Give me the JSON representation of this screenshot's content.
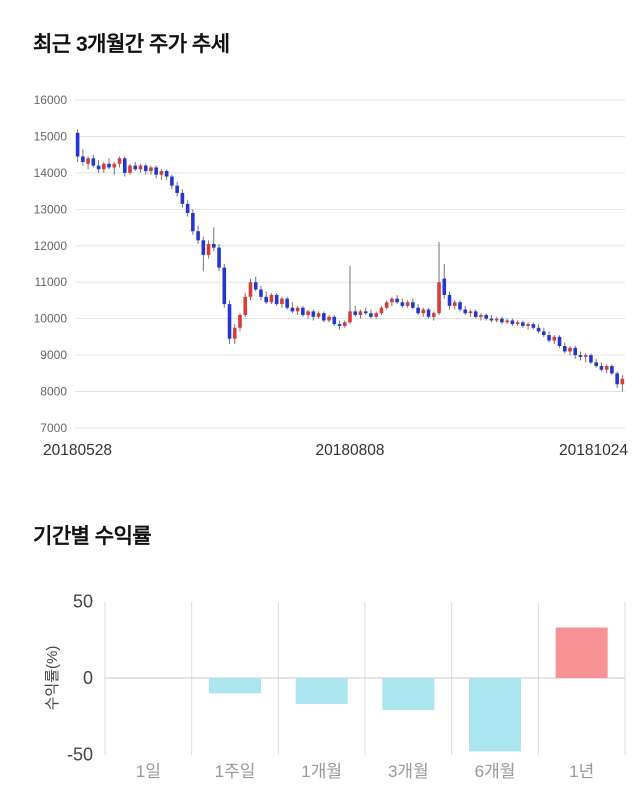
{
  "chart_data": [
    {
      "type": "candlestick",
      "title": "최근 3개월간 주가 추세",
      "ylim": [
        7000,
        16000
      ],
      "y_ticks": [
        16000,
        15000,
        14000,
        13000,
        12000,
        11000,
        10000,
        9000,
        8000,
        7000
      ],
      "x_tick_labels": [
        "20180528",
        "20180808",
        "20181024"
      ],
      "up_color": "#d93a3a",
      "down_color": "#2336d2",
      "wick_color": "#757575",
      "grid_color": "#e3e3e3",
      "tick_color": "#666666",
      "axis_label_color": "#333333",
      "candles_ohlc": [
        [
          15100,
          15200,
          14300,
          14450
        ],
        [
          14450,
          14650,
          14200,
          14300
        ],
        [
          14250,
          14450,
          14100,
          14400
        ],
        [
          14400,
          14500,
          14150,
          14200
        ],
        [
          14200,
          14350,
          14000,
          14100
        ],
        [
          14100,
          14300,
          14000,
          14250
        ],
        [
          14250,
          14400,
          14100,
          14150
        ],
        [
          14150,
          14300,
          13950,
          14250
        ],
        [
          14250,
          14450,
          14150,
          14400
        ],
        [
          14400,
          14450,
          13900,
          14000
        ],
        [
          14000,
          14250,
          13950,
          14200
        ],
        [
          14200,
          14300,
          14050,
          14100
        ],
        [
          14100,
          14250,
          14000,
          14200
        ],
        [
          14200,
          14250,
          13950,
          14050
        ],
        [
          14050,
          14200,
          13950,
          14150
        ],
        [
          14150,
          14200,
          13850,
          13950
        ],
        [
          13950,
          14100,
          13800,
          14050
        ],
        [
          14050,
          14100,
          13800,
          13900
        ],
        [
          13900,
          13950,
          13550,
          13650
        ],
        [
          13650,
          13750,
          13350,
          13450
        ],
        [
          13450,
          13550,
          13050,
          13150
        ],
        [
          13150,
          13250,
          12800,
          12900
        ],
        [
          12900,
          13000,
          12300,
          12400
        ],
        [
          12400,
          12550,
          12050,
          12150
        ],
        [
          12150,
          12250,
          11300,
          11750
        ],
        [
          11750,
          12150,
          11650,
          12050
        ],
        [
          12050,
          12500,
          11850,
          11950
        ],
        [
          11950,
          12050,
          11300,
          11400
        ],
        [
          11400,
          11500,
          10300,
          10400
        ],
        [
          10400,
          10500,
          9300,
          9450
        ],
        [
          9450,
          9850,
          9300,
          9750
        ],
        [
          9750,
          10150,
          9650,
          10100
        ],
        [
          10100,
          10700,
          10050,
          10600
        ],
        [
          10600,
          11100,
          10500,
          11000
        ],
        [
          11000,
          11150,
          10750,
          10800
        ],
        [
          10800,
          10900,
          10500,
          10600
        ],
        [
          10600,
          10750,
          10400,
          10450
        ],
        [
          10450,
          10700,
          10400,
          10650
        ],
        [
          10650,
          10700,
          10350,
          10400
        ],
        [
          10400,
          10600,
          10300,
          10550
        ],
        [
          10550,
          10600,
          10250,
          10300
        ],
        [
          10300,
          10450,
          10150,
          10200
        ],
        [
          10200,
          10350,
          10100,
          10300
        ],
        [
          10300,
          10350,
          10050,
          10100
        ],
        [
          10100,
          10250,
          10000,
          10200
        ],
        [
          10200,
          10250,
          9950,
          10050
        ],
        [
          10050,
          10200,
          10000,
          10150
        ],
        [
          10150,
          10200,
          9900,
          9950
        ],
        [
          9950,
          10100,
          9900,
          10050
        ],
        [
          10050,
          10100,
          9800,
          9850
        ],
        [
          9850,
          9950,
          9700,
          9800
        ],
        [
          9800,
          9950,
          9750,
          9900
        ],
        [
          9900,
          11450,
          9850,
          10200
        ],
        [
          10200,
          10350,
          10050,
          10100
        ],
        [
          10100,
          10250,
          10000,
          10200
        ],
        [
          10200,
          10300,
          10100,
          10150
        ],
        [
          10150,
          10250,
          10000,
          10050
        ],
        [
          10050,
          10200,
          10000,
          10150
        ],
        [
          10150,
          10350,
          10100,
          10300
        ],
        [
          10300,
          10500,
          10250,
          10450
        ],
        [
          10450,
          10600,
          10350,
          10550
        ],
        [
          10550,
          10650,
          10400,
          10450
        ],
        [
          10450,
          10550,
          10300,
          10350
        ],
        [
          10350,
          10500,
          10300,
          10450
        ],
        [
          10450,
          10550,
          10250,
          10300
        ],
        [
          10300,
          10400,
          10100,
          10150
        ],
        [
          10150,
          10300,
          10050,
          10250
        ],
        [
          10250,
          10300,
          10000,
          10050
        ],
        [
          10050,
          10200,
          9950,
          10150
        ],
        [
          10150,
          12100,
          10100,
          11000
        ],
        [
          11100,
          11500,
          10550,
          10650
        ],
        [
          10650,
          10750,
          10250,
          10350
        ],
        [
          10350,
          10500,
          10250,
          10450
        ],
        [
          10450,
          10500,
          10200,
          10250
        ],
        [
          10250,
          10350,
          10100,
          10150
        ],
        [
          10150,
          10250,
          10050,
          10200
        ],
        [
          10200,
          10250,
          10000,
          10050
        ],
        [
          10050,
          10150,
          9950,
          10100
        ],
        [
          10100,
          10150,
          9950,
          10000
        ],
        [
          10000,
          10100,
          9900,
          9950
        ],
        [
          9950,
          10050,
          9900,
          10000
        ],
        [
          10000,
          10050,
          9850,
          9900
        ],
        [
          9900,
          10000,
          9850,
          9950
        ],
        [
          9950,
          10000,
          9800,
          9850
        ],
        [
          9850,
          9950,
          9800,
          9900
        ],
        [
          9900,
          9950,
          9750,
          9800
        ],
        [
          9800,
          9900,
          9700,
          9850
        ],
        [
          9850,
          9900,
          9700,
          9750
        ],
        [
          9750,
          9850,
          9600,
          9650
        ],
        [
          9650,
          9750,
          9500,
          9550
        ],
        [
          9550,
          9650,
          9350,
          9400
        ],
        [
          9400,
          9550,
          9300,
          9500
        ],
        [
          9500,
          9550,
          9200,
          9250
        ],
        [
          9250,
          9350,
          9050,
          9100
        ],
        [
          9100,
          9250,
          9000,
          9200
        ],
        [
          9200,
          9250,
          8900,
          9000
        ],
        [
          9000,
          9100,
          8850,
          8950
        ],
        [
          8950,
          9050,
          8800,
          9000
        ],
        [
          9000,
          9050,
          8750,
          8800
        ],
        [
          8800,
          8900,
          8650,
          8700
        ],
        [
          8700,
          8800,
          8550,
          8600
        ],
        [
          8600,
          8750,
          8500,
          8700
        ],
        [
          8700,
          8750,
          8450,
          8500
        ],
        [
          8500,
          8550,
          8100,
          8200
        ],
        [
          8200,
          8450,
          8000,
          8350
        ]
      ]
    },
    {
      "type": "bar",
      "title": "기간별 수익률",
      "ylabel": "수익률(%)",
      "categories": [
        "1일",
        "1주일",
        "1개월",
        "3개월",
        "6개월",
        "1년"
      ],
      "values": [
        0,
        -10,
        -17,
        -21,
        -48,
        33
      ],
      "y_ticks": [
        50,
        0,
        -50
      ],
      "ylim": [
        -55,
        55
      ],
      "positive_color": "#f79294",
      "negative_color": "#abe6f0",
      "grid_color": "#dcdcdc",
      "baseline_color": "#c9c9c9",
      "tick_color": "#444444",
      "label_color": "#999999",
      "legend": "none",
      "grid": "vertical"
    }
  ]
}
